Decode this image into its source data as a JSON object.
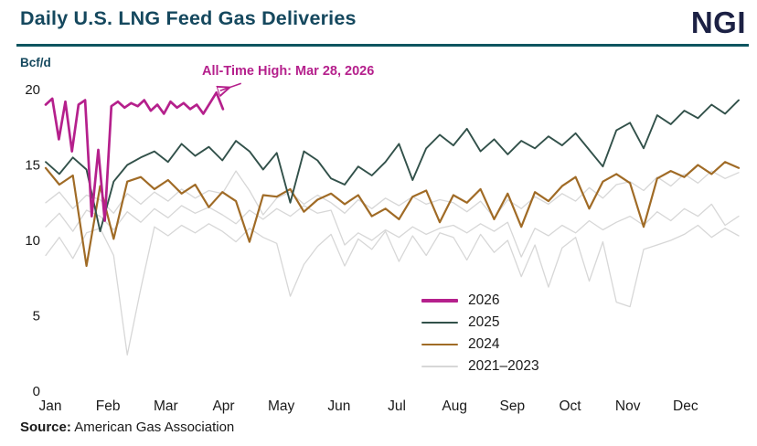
{
  "header": {
    "title": "Daily U.S. LNG Feed Gas Deliveries",
    "logo": "NGI"
  },
  "annotation": {
    "text": "All-Time High: Mar 28, 2026"
  },
  "source": {
    "label": "Source:",
    "text": " American Gas Association"
  },
  "colors": {
    "title": "#15485e",
    "logo_text": "#1c2144",
    "rule": "#0d5560",
    "annotation": "#b5208c",
    "axis_text": "#1a1a1a",
    "series_2026": "#b5208c",
    "series_2025": "#32514a",
    "series_2024": "#a06b26",
    "series_2021_2023": "#d7d7d7"
  },
  "chart_data": {
    "type": "line",
    "title": "Daily U.S. LNG Feed Gas Deliveries",
    "xlabel": "",
    "ylabel": "Bcf/d",
    "ylim": [
      0,
      20
    ],
    "yticks": [
      0,
      5,
      10,
      15,
      20
    ],
    "xtick_labels": [
      "Jan",
      "Feb",
      "Mar",
      "Apr",
      "May",
      "Jun",
      "Jul",
      "Aug",
      "Sep",
      "Oct",
      "Nov",
      "Dec"
    ],
    "grid": false,
    "legend_position": "inside-lower-center",
    "annotation": {
      "text": "All-Time High: Mar 28, 2026",
      "points_to": "peak of 2026 series"
    },
    "legend": [
      {
        "label": "2026",
        "color": "#b5208c",
        "thickness": 3.5
      },
      {
        "label": "2025",
        "color": "#32514a",
        "thickness": 2
      },
      {
        "label": "2024",
        "color": "#a06b26",
        "thickness": 2.5
      },
      {
        "label": "2021–2023",
        "color": "#d7d7d7",
        "thickness": 1.5
      }
    ],
    "series": [
      {
        "name": "2021",
        "color": "#d7d7d7",
        "thickness": 1.3,
        "x_start_month": 0,
        "x_end_month": 12,
        "values": [
          9.0,
          10.2,
          8.8,
          10.5,
          10.8,
          9.0,
          2.4,
          6.8,
          10.9,
          10.3,
          11.0,
          10.5,
          11.1,
          10.6,
          9.9,
          10.8,
          10.2,
          9.8,
          6.3,
          8.4,
          9.6,
          10.4,
          8.3,
          10.1,
          9.4,
          10.6,
          8.6,
          10.3,
          9.0,
          10.5,
          10.2,
          8.7,
          10.4,
          9.2,
          10.0,
          7.6,
          9.7,
          6.9,
          9.5,
          10.2,
          7.3,
          9.9,
          5.9,
          5.6,
          9.4,
          9.7,
          10.0,
          10.4,
          11.0,
          10.2,
          10.8,
          10.3
        ]
      },
      {
        "name": "2022",
        "color": "#d7d7d7",
        "thickness": 1.3,
        "x_start_month": 0,
        "x_end_month": 12,
        "values": [
          10.9,
          11.8,
          10.6,
          12.0,
          11.6,
          10.7,
          11.9,
          11.2,
          12.1,
          11.5,
          12.3,
          11.8,
          12.2,
          11.7,
          11.1,
          12.0,
          11.4,
          12.1,
          11.6,
          12.3,
          11.8,
          12.0,
          9.7,
          10.5,
          10.0,
          10.7,
          10.2,
          10.9,
          10.4,
          10.8,
          11.0,
          10.5,
          11.1,
          10.6,
          11.2,
          8.9,
          10.8,
          10.3,
          11.0,
          10.5,
          11.3,
          10.7,
          11.2,
          11.6,
          11.0,
          11.9,
          11.3,
          12.1,
          11.6,
          12.4,
          11.0,
          11.6
        ]
      },
      {
        "name": "2023",
        "color": "#d7d7d7",
        "thickness": 1.3,
        "x_start_month": 0,
        "x_end_month": 12,
        "values": [
          12.5,
          13.2,
          12.1,
          13.0,
          12.7,
          11.8,
          13.1,
          12.4,
          13.2,
          12.6,
          13.4,
          12.8,
          13.3,
          13.1,
          14.6,
          13.3,
          11.7,
          12.8,
          13.2,
          12.4,
          13.0,
          12.5,
          11.8,
          12.7,
          12.1,
          12.8,
          12.3,
          12.9,
          12.4,
          12.7,
          12.5,
          11.9,
          12.6,
          11.5,
          12.7,
          12.1,
          12.9,
          12.4,
          13.1,
          12.6,
          13.5,
          12.8,
          13.7,
          13.9,
          13.3,
          14.2,
          13.6,
          14.4,
          13.8,
          14.6,
          14.1,
          14.5
        ]
      },
      {
        "name": "2024",
        "color": "#a06b26",
        "thickness": 2.2,
        "x_start_month": 0,
        "x_end_month": 12,
        "values": [
          14.8,
          13.7,
          14.3,
          8.3,
          13.6,
          10.1,
          13.9,
          14.2,
          13.4,
          14.0,
          13.1,
          13.7,
          12.2,
          13.2,
          12.6,
          9.9,
          13.0,
          12.9,
          13.4,
          11.9,
          12.7,
          13.1,
          12.4,
          13.0,
          11.6,
          12.1,
          11.4,
          12.9,
          13.3,
          11.2,
          13.0,
          12.5,
          13.4,
          11.4,
          13.1,
          10.9,
          13.2,
          12.6,
          13.6,
          14.2,
          12.1,
          13.9,
          14.4,
          13.8,
          10.9,
          14.1,
          14.6,
          14.2,
          15.0,
          14.4,
          15.2,
          14.8
        ]
      },
      {
        "name": "2025",
        "color": "#32514a",
        "thickness": 1.9,
        "x_start_month": 0,
        "x_end_month": 12,
        "values": [
          15.2,
          14.4,
          15.5,
          14.7,
          10.6,
          13.9,
          15.0,
          15.5,
          15.9,
          15.2,
          16.4,
          15.6,
          16.2,
          15.3,
          16.6,
          15.9,
          14.7,
          15.8,
          12.5,
          15.9,
          15.3,
          14.1,
          13.7,
          14.9,
          14.3,
          15.2,
          16.4,
          14.0,
          16.1,
          17.0,
          16.3,
          17.4,
          15.9,
          16.7,
          15.7,
          16.6,
          16.1,
          16.9,
          16.3,
          17.1,
          16.0,
          14.9,
          17.3,
          17.8,
          16.1,
          18.3,
          17.7,
          18.6,
          18.1,
          19.0,
          18.4,
          19.3
        ]
      },
      {
        "name": "2026",
        "color": "#b5208c",
        "thickness": 2.7,
        "x_start_month": 0,
        "x_end_month": 3.07,
        "values": [
          19.0,
          19.4,
          16.7,
          19.2,
          15.9,
          19.0,
          19.3,
          11.6,
          16.0,
          11.3,
          18.9,
          19.2,
          18.8,
          19.1,
          18.9,
          19.3,
          18.6,
          19.0,
          18.4,
          19.2,
          18.8,
          19.1,
          18.7,
          19.0,
          18.4,
          19.1,
          19.8,
          18.7
        ]
      }
    ]
  }
}
